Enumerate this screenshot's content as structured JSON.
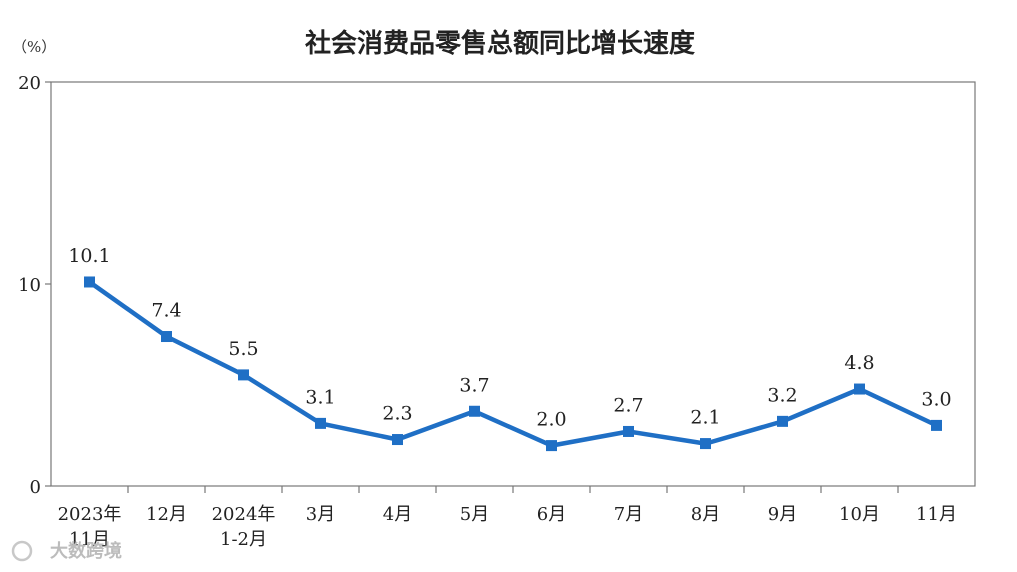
{
  "chart_data": {
    "type": "line",
    "title": "社会消费品零售总额同比增长速度",
    "unit_label": "（%）",
    "categories": [
      [
        "2023年",
        "11月"
      ],
      [
        "12月"
      ],
      [
        "2024年",
        "1-2月"
      ],
      [
        "3月"
      ],
      [
        "4月"
      ],
      [
        "5月"
      ],
      [
        "6月"
      ],
      [
        "7月"
      ],
      [
        "8月"
      ],
      [
        "9月"
      ],
      [
        "10月"
      ],
      [
        "11月"
      ]
    ],
    "series": [
      {
        "values": [
          10.1,
          7.4,
          5.5,
          3.1,
          2.3,
          3.7,
          2.0,
          2.7,
          2.1,
          3.2,
          4.8,
          3.0
        ]
      }
    ],
    "data_labels": [
      "10.1",
      "7.4",
      "5.5",
      "3.1",
      "2.3",
      "3.7",
      "2.0",
      "2.7",
      "2.1",
      "3.2",
      "4.8",
      "3.0"
    ],
    "ylim": [
      0,
      20
    ],
    "yticks": [
      0,
      10,
      20
    ],
    "ytick_labels": [
      "0",
      "10",
      "20"
    ],
    "grid": false,
    "legend": "none",
    "colors": {
      "line": "#1f6fc5",
      "marker": "#1f6fc5",
      "axis": "#777777"
    }
  },
  "watermark": {
    "text": "大数跨境"
  }
}
